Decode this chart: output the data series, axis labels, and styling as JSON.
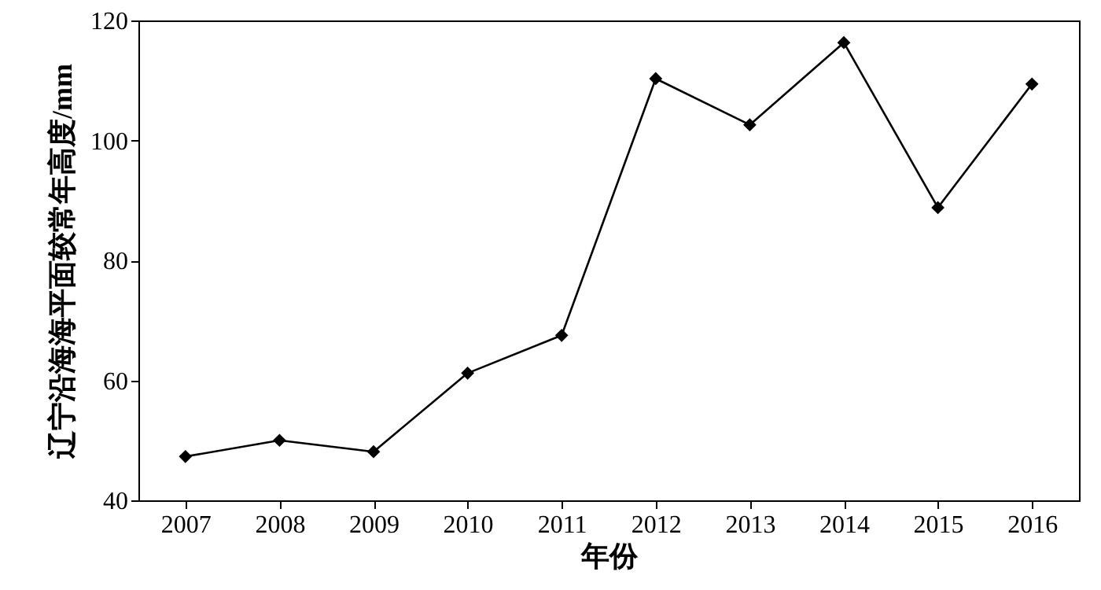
{
  "chart_data": {
    "type": "line",
    "xlabel": "年份",
    "ylabel": "辽宁沿海海平面较常年高度/mm",
    "x": [
      2007,
      2008,
      2009,
      2010,
      2011,
      2012,
      2013,
      2014,
      2015,
      2016
    ],
    "series": [
      {
        "color": "#000000",
        "values": [
          47.3,
          50,
          48.1,
          61.2,
          67.5,
          110.3,
          102.6,
          116.3,
          88.8,
          109.4
        ]
      }
    ],
    "xlim": [
      2006.5,
      2016.5
    ],
    "xticks": [
      2007,
      2008,
      2009,
      2010,
      2011,
      2012,
      2013,
      2014,
      2015,
      2016
    ],
    "ylim": [
      40,
      120
    ],
    "yticks": [
      40,
      60,
      80,
      100,
      120
    ],
    "grid": false,
    "marker": "diamond",
    "line_style": "solid"
  }
}
